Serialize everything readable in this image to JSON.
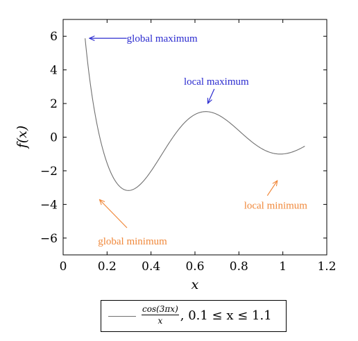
{
  "chart_data": {
    "type": "line",
    "xlabel": "x",
    "ylabel": "f(x)",
    "xlim": [
      0,
      1.2
    ],
    "ylim": [
      -7,
      7
    ],
    "x_ticks": [
      0,
      0.2,
      0.4,
      0.6,
      0.8,
      1,
      1.2
    ],
    "x_tick_labels": [
      "0",
      "0.2",
      "0.4",
      "0.6",
      "0.8",
      "1",
      "1.2"
    ],
    "y_ticks": [
      -6,
      -4,
      -2,
      0,
      2,
      4,
      6
    ],
    "y_tick_labels": [
      "−6",
      "−4",
      "−2",
      "0",
      "2",
      "4",
      "6"
    ],
    "grid": false,
    "legend_position": "below",
    "series": [
      {
        "name_numerator": "cos(3πx)",
        "name_denominator": "x",
        "name_condition": ", 0.1 ≤ x ≤ 1.1",
        "function": "cos(3*pi*x)/x",
        "domain": [
          0.1,
          1.1
        ],
        "color": "#707070"
      }
    ],
    "annotations": [
      {
        "text": "global maximum",
        "point": [
          0.1,
          5.88
        ],
        "color": "#2a2acf"
      },
      {
        "text": "local maximum",
        "point": [
          0.65,
          1.5
        ],
        "color": "#2a2acf"
      },
      {
        "text": "global minimum",
        "point": [
          0.3,
          -3.2
        ],
        "color": "#f0883a"
      },
      {
        "text": "local minimum",
        "point": [
          0.98,
          -1.0
        ],
        "color": "#f0883a"
      }
    ]
  }
}
